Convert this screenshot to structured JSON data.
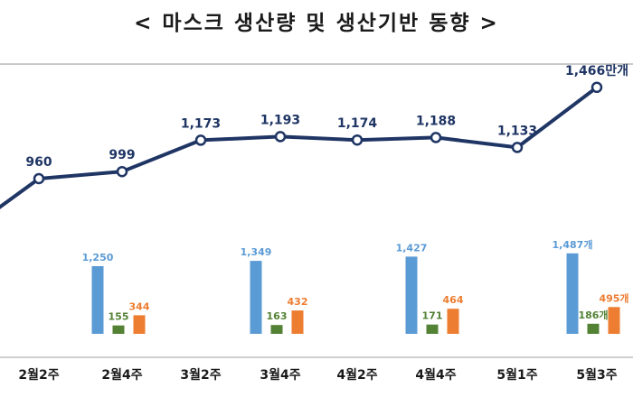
{
  "title": "< 마스크 생산량 및 생산기반 동향 >",
  "chart_data": [
    {
      "type": "line",
      "categories": [
        "2월2주",
        "2월4주",
        "3월2주",
        "3월4주",
        "4월2주",
        "4월4주",
        "5월1주",
        "5월3주"
      ],
      "series": [
        {
          "values": [
            960,
            999,
            1173,
            1193,
            1174,
            1188,
            1133,
            1466
          ]
        }
      ],
      "data_labels": [
        "960",
        "999",
        "1,173",
        "1,193",
        "1,174",
        "1,188",
        "1,133",
        "1,466만개"
      ],
      "ylim": [
        700,
        1600
      ],
      "colors": {
        "line": "#1f3564",
        "marker_fill": "#ffffff",
        "label": "#1f3564"
      },
      "grid": false,
      "legend": "none"
    },
    {
      "type": "bar",
      "categories": [
        "2월4주",
        "3월4주",
        "4월4주",
        "5월3주"
      ],
      "series": [
        {
          "values": [
            1250,
            1349,
            1427,
            1487
          ],
          "labels": [
            "1,250",
            "1,349",
            "1,427",
            "1,487개"
          ],
          "color": "#5b9bd5"
        },
        {
          "values": [
            155,
            163,
            171,
            186
          ],
          "labels": [
            "155",
            "163",
            "171",
            "186개"
          ],
          "color": "#548235"
        },
        {
          "values": [
            344,
            432,
            464,
            495
          ],
          "labels": [
            "344",
            "432",
            "464",
            "495개"
          ],
          "color": "#ed7d31"
        }
      ],
      "ylim": [
        0,
        1700
      ],
      "grid": false,
      "legend": "none"
    }
  ],
  "x_axis": {
    "tick_labels": [
      "2월2주",
      "2월4주",
      "3월2주",
      "3월4주",
      "4월2주",
      "4월4주",
      "5월1주",
      "5월3주"
    ],
    "bar_groups": [
      1,
      3,
      5,
      7
    ]
  }
}
